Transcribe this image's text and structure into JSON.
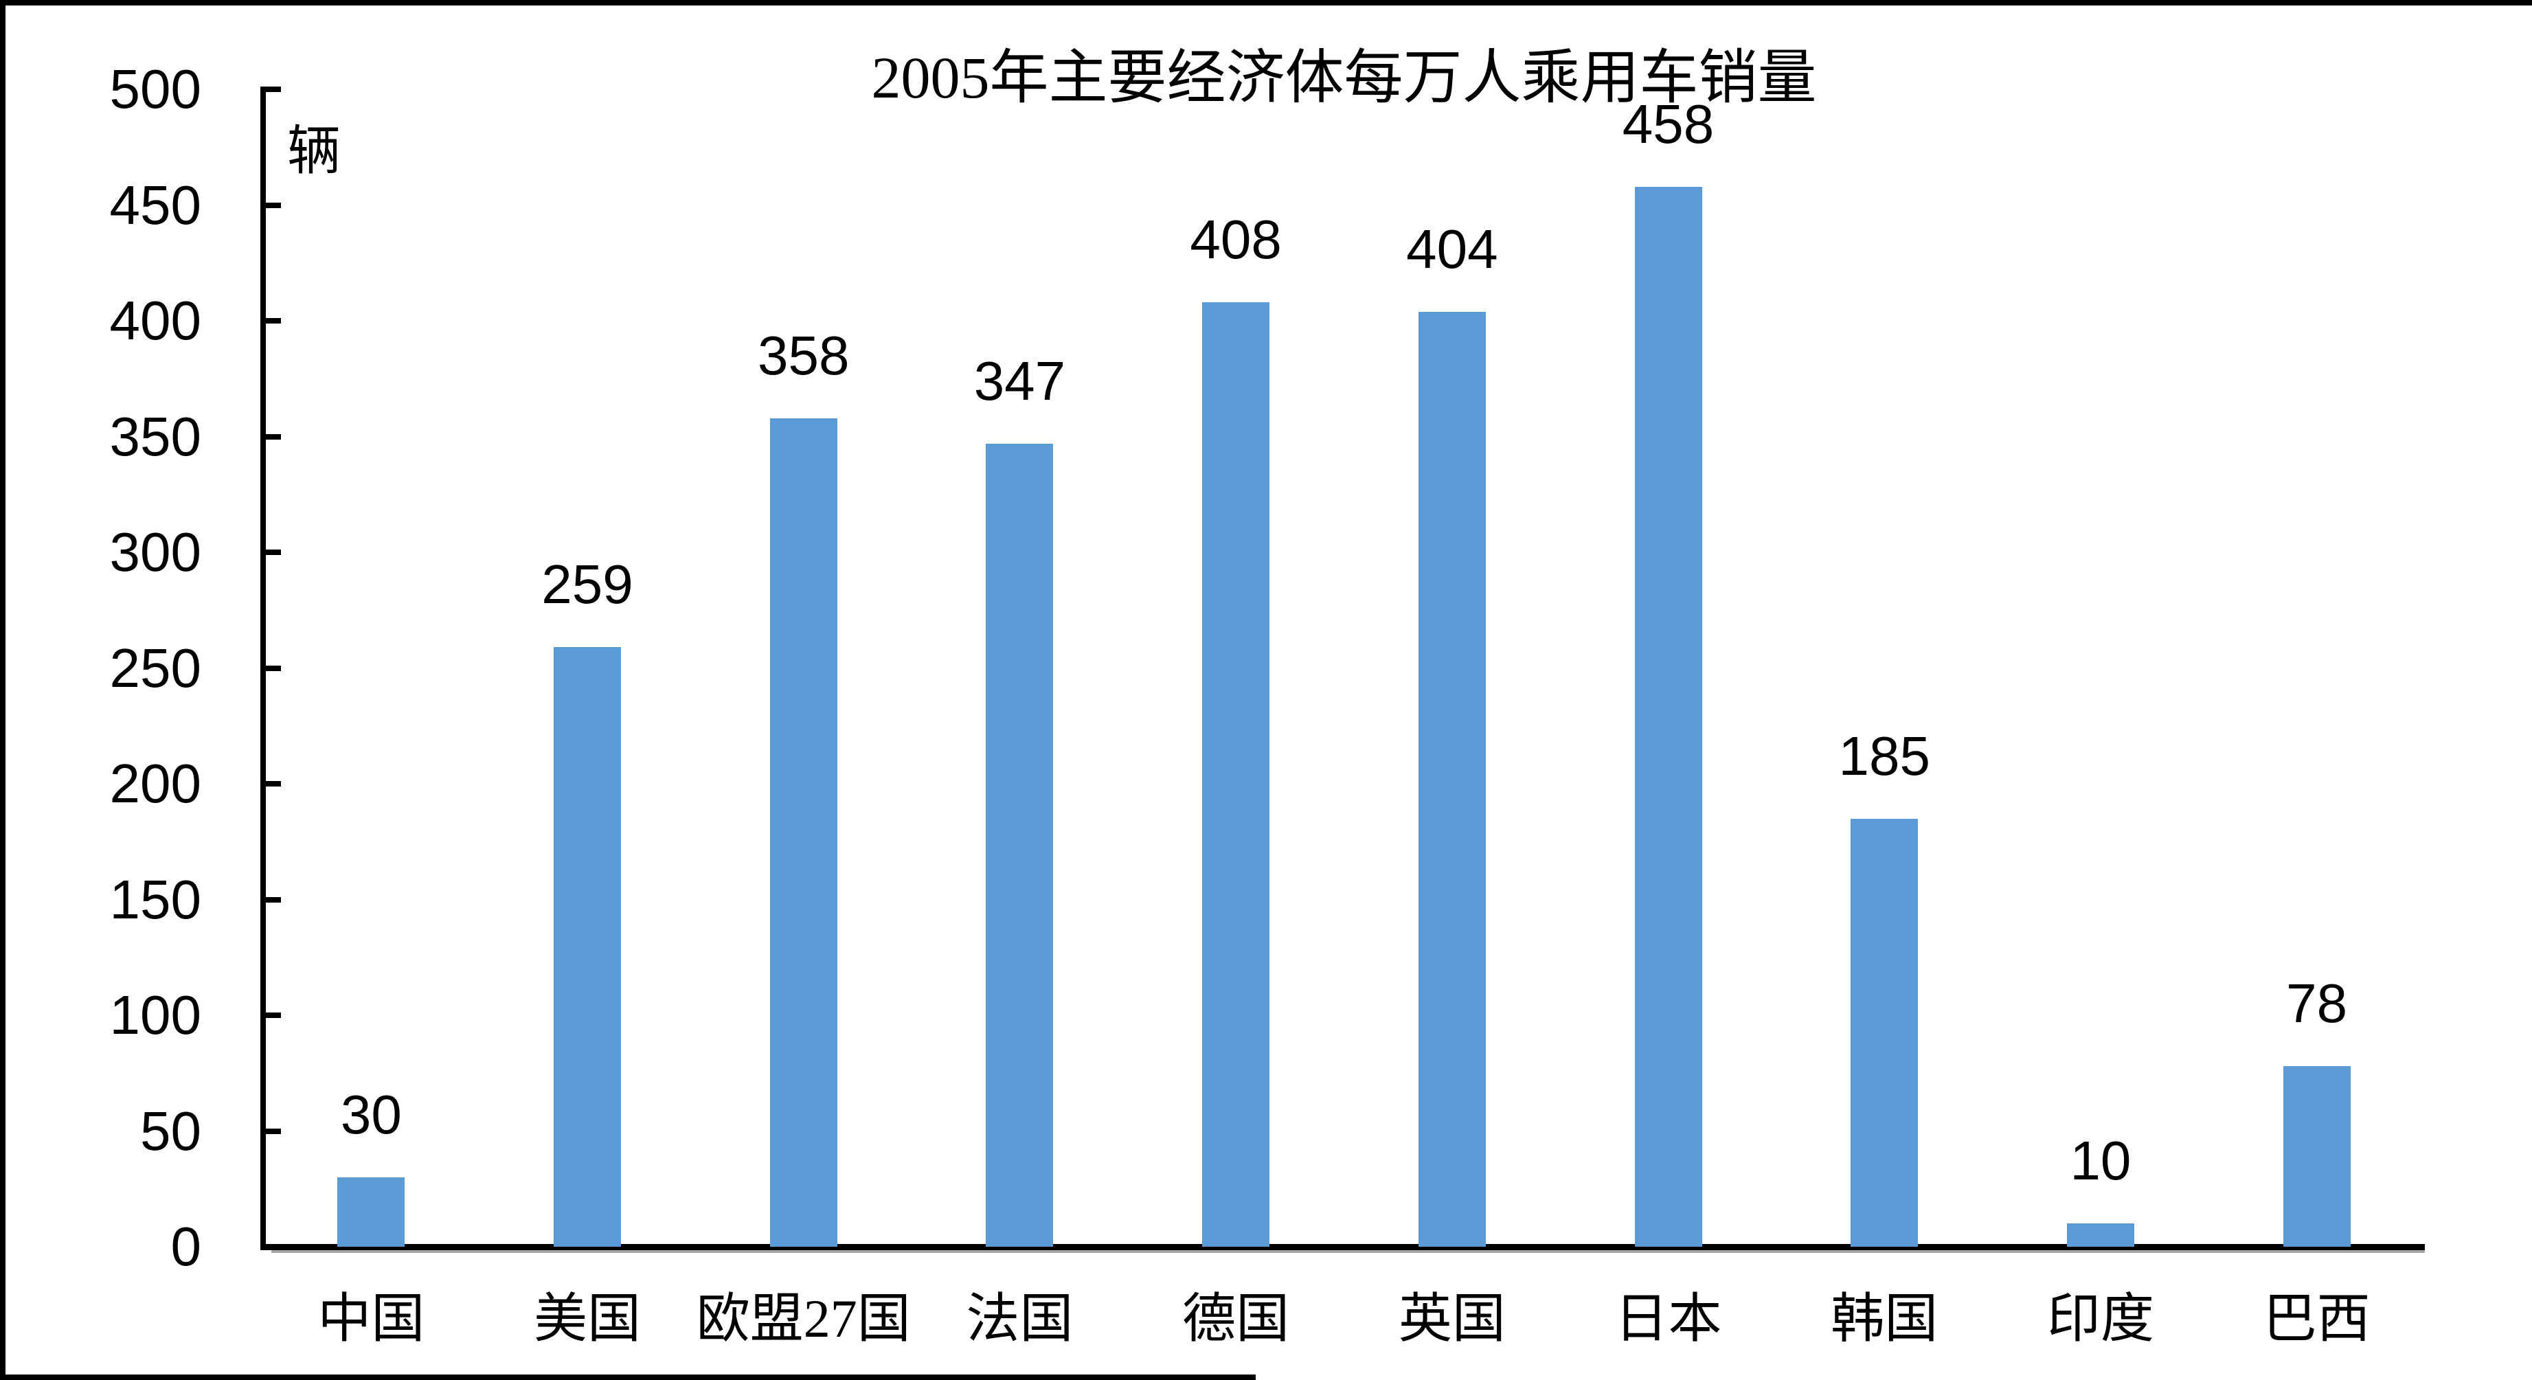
{
  "chart_data": {
    "type": "bar",
    "title": "2005年主要经济体每万人乘用车销量",
    "unit_label": "辆",
    "categories": [
      "中国",
      "美国",
      "欧盟27国",
      "法国",
      "德国",
      "英国",
      "日本",
      "韩国",
      "印度",
      "巴西"
    ],
    "values": [
      30,
      259,
      358,
      347,
      408,
      404,
      458,
      185,
      10,
      78
    ],
    "series_name": "每万人乘用车销量",
    "xlabel": "",
    "ylabel": "辆",
    "ylim": [
      0,
      500
    ],
    "y_ticks": [
      0,
      50,
      100,
      150,
      200,
      250,
      300,
      350,
      400,
      450,
      500
    ],
    "grid": false,
    "legend_position": "none",
    "bar_color": "#5b9bd5",
    "axis_color": "#000000",
    "axis_shadow_color": "#a6a6a6",
    "label_color": "#000000",
    "background_color": "#ffffff"
  }
}
